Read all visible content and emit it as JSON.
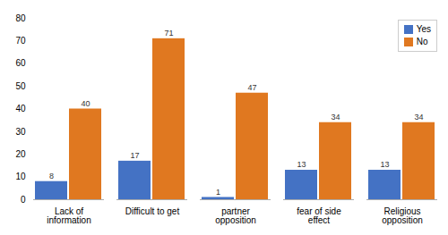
{
  "chart_data": {
    "type": "bar",
    "categories": [
      "Lack of\ninformation",
      "Difficult to get",
      "partner\nopposition",
      "fear of side\neffect",
      "Religious\nopposition"
    ],
    "series": [
      {
        "name": "Yes",
        "color": "#4472C4",
        "values": [
          8,
          17,
          1,
          13,
          13
        ]
      },
      {
        "name": "No",
        "color": "#E07820",
        "values": [
          40,
          71,
          47,
          34,
          34
        ]
      }
    ],
    "ylim": [
      0,
      80
    ],
    "yticks": [
      0,
      10,
      20,
      30,
      40,
      50,
      60,
      70,
      80
    ],
    "grid": false,
    "legend": "upper right",
    "data_labels": true
  }
}
